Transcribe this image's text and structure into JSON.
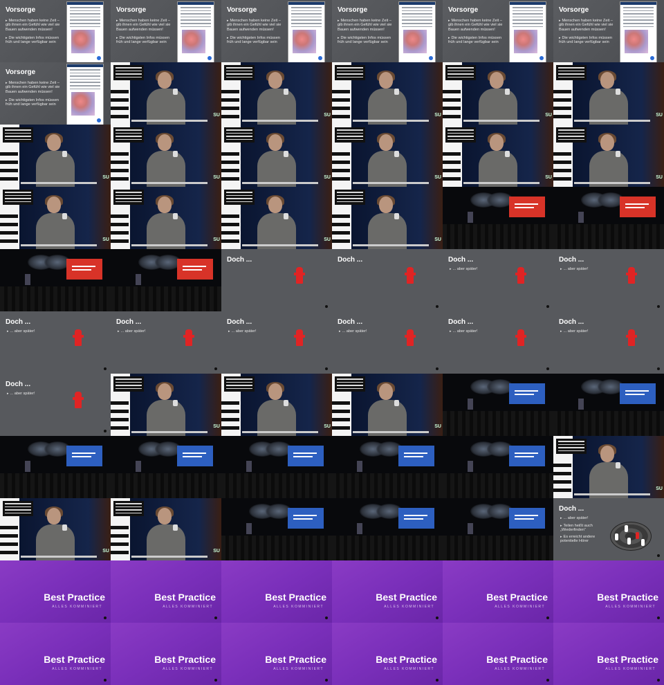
{
  "vorsorge": {
    "title": "Vorsorge",
    "bullet1": "Menschen haben keine Zeit – gib ihnen ein Gefühl wie viel sie Bauen aufwenden müssen!",
    "bullet2": "Die wichtigsten Infos müssen früh und lange verfügbar sein"
  },
  "doch": {
    "title": "Doch ...",
    "sub": "... aber später!",
    "extra1": "Teilen heißt auch „Wiederfinden“",
    "extra2": "Es erreicht andere potentielle Hörer"
  },
  "best": {
    "title": "Best Practice",
    "sub": "ALLES KOMMINIERT"
  },
  "stage": {
    "brand": "SU"
  },
  "tiles": [
    "vorsorge",
    "vorsorge",
    "vorsorge",
    "vorsorge",
    "vorsorge",
    "vorsorge",
    "vorsorge",
    "speaker",
    "speaker",
    "speaker",
    "speaker",
    "speaker",
    "speaker",
    "speaker",
    "speaker",
    "speaker",
    "speaker",
    "speaker",
    "speaker",
    "speaker",
    "speaker",
    "speaker",
    "hall-red",
    "hall-red",
    "hall-red",
    "hall-red",
    "doch-title",
    "doch-title",
    "doch",
    "doch",
    "doch",
    "doch",
    "doch",
    "doch",
    "doch",
    "doch",
    "doch",
    "speaker",
    "speaker",
    "speaker",
    "hall-blue",
    "hall-blue",
    "hall-blue",
    "hall-blue",
    "hall-blue",
    "hall-blue",
    "hall-blue",
    "speaker",
    "speaker",
    "speaker",
    "hall-blue",
    "hall-blue",
    "hall-blue",
    "doch-extra",
    "best",
    "best",
    "best",
    "best",
    "best",
    "best",
    "best",
    "best",
    "best",
    "best",
    "best",
    "best"
  ]
}
